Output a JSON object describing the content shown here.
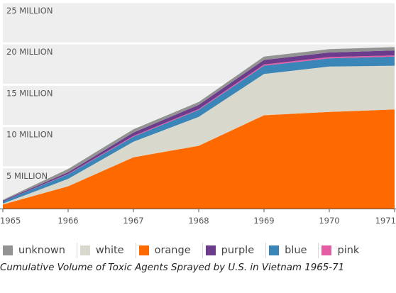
{
  "chart_data": {
    "type": "area",
    "stacked": true,
    "title": "Cumulative Volume of Toxic Agents Sprayed by U.S. in Vietnam 1965-71",
    "x": [
      "1965",
      "1966",
      "1967",
      "1968",
      "1969",
      "1970",
      "1971"
    ],
    "ylim": [
      0,
      25000000
    ],
    "ytick_labels": [
      "5 MILLION",
      "10 MILLION",
      "15 MILLION",
      "20 MILLION",
      "25 MILLION"
    ],
    "ytick_values": [
      5000000,
      10000000,
      15000000,
      20000000,
      25000000
    ],
    "grid": "horizontal bands",
    "legend_position": "bottom",
    "series": [
      {
        "name": "orange",
        "color": "#ff6a00",
        "values": [
          500000,
          2700000,
          6200000,
          7600000,
          11300000,
          11700000,
          12000000
        ]
      },
      {
        "name": "white",
        "color": "#d8d8cc",
        "values": [
          100000,
          900000,
          1900000,
          3500000,
          5000000,
          5500000,
          5300000
        ]
      },
      {
        "name": "blue",
        "color": "#3b86b8",
        "values": [
          250000,
          550000,
          600000,
          850000,
          1000000,
          1000000,
          1100000
        ]
      },
      {
        "name": "pink",
        "color": "#e45ca4",
        "values": [
          0,
          50000,
          100000,
          100000,
          150000,
          150000,
          150000
        ]
      },
      {
        "name": "purple",
        "color": "#6c3c8c",
        "values": [
          100000,
          200000,
          400000,
          500000,
          550000,
          550000,
          600000
        ]
      },
      {
        "name": "unknown",
        "color": "#939393",
        "values": [
          100000,
          400000,
          400000,
          350000,
          400000,
          400000,
          400000
        ]
      }
    ]
  },
  "legend": [
    {
      "name": "unknown",
      "color": "#939393"
    },
    {
      "name": "white",
      "color": "#d8d8cc"
    },
    {
      "name": "orange",
      "color": "#ff6a00"
    },
    {
      "name": "purple",
      "color": "#6c3c8c"
    },
    {
      "name": "blue",
      "color": "#3b86b8"
    },
    {
      "name": "pink",
      "color": "#e45ca4"
    }
  ],
  "caption": "Cumulative Volume of Toxic Agents Sprayed by U.S. in Vietnam 1965-71"
}
